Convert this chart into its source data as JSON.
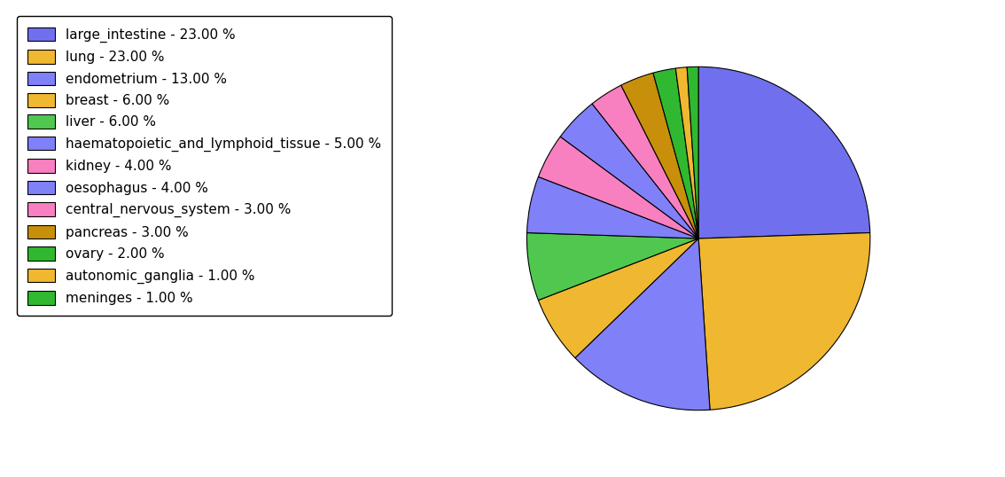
{
  "labels": [
    "large_intestine - 23.00 %",
    "lung - 23.00 %",
    "endometrium - 13.00 %",
    "breast - 6.00 %",
    "liver - 6.00 %",
    "haematopoietic_and_lymphoid_tissue - 5.00 %",
    "kidney - 4.00 %",
    "oesophagus - 4.00 %",
    "central_nervous_system - 3.00 %",
    "pancreas - 3.00 %",
    "ovary - 2.00 %",
    "autonomic_ganglia - 1.00 %",
    "meninges - 1.00 %"
  ],
  "values": [
    23,
    23,
    13,
    6,
    6,
    5,
    4,
    4,
    3,
    3,
    2,
    1,
    1
  ],
  "colors": [
    "#7070ee",
    "#f0b830",
    "#8080f8",
    "#f0b830",
    "#50c850",
    "#8080f8",
    "#f880c0",
    "#8080f8",
    "#f880c0",
    "#c8900a",
    "#30b830",
    "#f0b830",
    "#30b830"
  ],
  "startangle": 90,
  "figsize": [
    11.34,
    5.38
  ],
  "dpi": 100
}
